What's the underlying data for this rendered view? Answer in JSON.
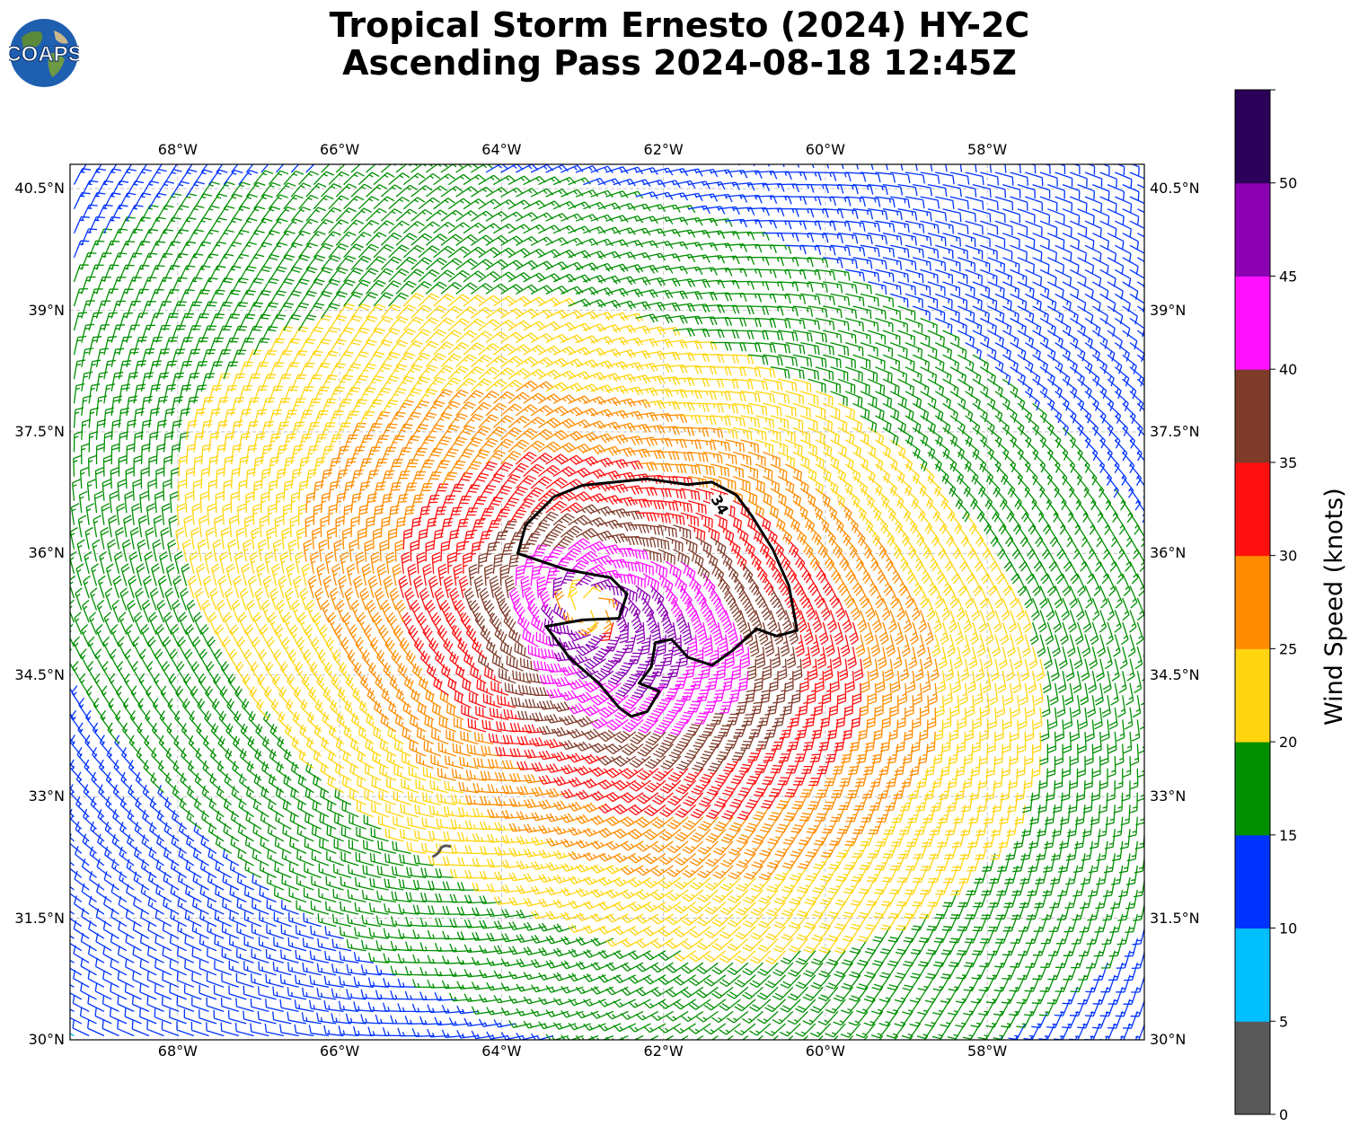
{
  "title": {
    "line1": "Tropical Storm Ernesto (2024) HY-2C",
    "line2": "Ascending Pass 2024-08-18 12:45Z"
  },
  "logo": {
    "text": "COAPS",
    "icon": "globe-icon"
  },
  "map": {
    "extent": {
      "lon": [
        -69.33,
        -56.06
      ],
      "lat": [
        30.0,
        40.8
      ]
    },
    "lon_ticks": [
      {
        "value": -68,
        "label": "68°W"
      },
      {
        "value": -66,
        "label": "66°W"
      },
      {
        "value": -64,
        "label": "64°W"
      },
      {
        "value": -62,
        "label": "62°W"
      },
      {
        "value": -60,
        "label": "60°W"
      },
      {
        "value": -58,
        "label": "58°W"
      }
    ],
    "lat_ticks": [
      {
        "value": 30.0,
        "label": "30°N"
      },
      {
        "value": 31.5,
        "label": "31.5°N"
      },
      {
        "value": 33.0,
        "label": "33°N"
      },
      {
        "value": 34.5,
        "label": "34.5°N"
      },
      {
        "value": 36.0,
        "label": "36°N"
      },
      {
        "value": 37.5,
        "label": "37.5°N"
      },
      {
        "value": 39.0,
        "label": "39°N"
      },
      {
        "value": 40.5,
        "label": "40.5°N"
      }
    ],
    "grid": true,
    "storm_center": {
      "lon": -62.9,
      "lat": 35.3
    },
    "contour": {
      "level_label": "34",
      "points": [
        [
          -63.0,
          36.84
        ],
        [
          -62.6,
          36.88
        ],
        [
          -62.2,
          36.92
        ],
        [
          -61.7,
          36.85
        ],
        [
          -61.4,
          36.88
        ],
        [
          -61.1,
          36.72
        ],
        [
          -60.9,
          36.45
        ],
        [
          -60.65,
          36.05
        ],
        [
          -60.45,
          35.6
        ],
        [
          -60.35,
          35.05
        ],
        [
          -60.6,
          34.98
        ],
        [
          -60.85,
          35.07
        ],
        [
          -61.15,
          34.8
        ],
        [
          -61.4,
          34.62
        ],
        [
          -61.7,
          34.72
        ],
        [
          -61.9,
          34.94
        ],
        [
          -62.1,
          34.9
        ],
        [
          -62.15,
          34.6
        ],
        [
          -62.3,
          34.4
        ],
        [
          -62.05,
          34.3
        ],
        [
          -62.2,
          34.05
        ],
        [
          -62.4,
          33.99
        ],
        [
          -62.55,
          34.1
        ],
        [
          -62.8,
          34.4
        ],
        [
          -63.15,
          34.7
        ],
        [
          -63.45,
          35.1
        ],
        [
          -63.0,
          35.18
        ],
        [
          -62.55,
          35.2
        ],
        [
          -62.45,
          35.5
        ],
        [
          -62.65,
          35.7
        ],
        [
          -63.2,
          35.8
        ],
        [
          -63.8,
          36.0
        ],
        [
          -63.7,
          36.35
        ],
        [
          -63.35,
          36.7
        ]
      ]
    },
    "island": {
      "name": "Bermuda",
      "lon": -64.75,
      "lat": 32.32
    }
  },
  "colorbar": {
    "label": "Wind Speed (knots)",
    "levels": [
      0,
      5,
      10,
      15,
      20,
      25,
      30,
      35,
      40,
      45,
      50,
      55
    ],
    "tick_labels": [
      "0",
      "5",
      "10",
      "15",
      "20",
      "25",
      "30",
      "35",
      "40",
      "45",
      "50"
    ],
    "colors": [
      "#595959",
      "#00bfff",
      "#0033ff",
      "#008f00",
      "#ffd510",
      "#ff8c00",
      "#ff1010",
      "#7f3b2a",
      "#ff10ff",
      "#8b00b3",
      "#2a0059"
    ]
  }
}
